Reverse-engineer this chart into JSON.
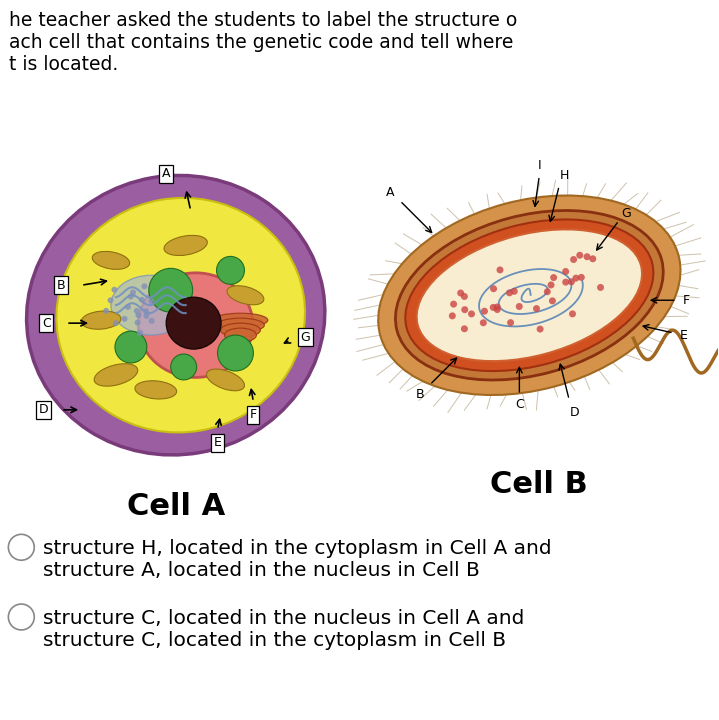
{
  "bg_color": "#ffffff",
  "text_color": "#000000",
  "title_lines": [
    "he teacher asked the students to label the structure o",
    "ach cell that contains the genetic code and tell where",
    "t is located."
  ],
  "cell_a_label": "Cell A",
  "cell_b_label": "Cell B",
  "option1_line1": "structure H, located in the cytoplasm in Cell A and",
  "option1_line2": "structure A, located in the nucleus in Cell B",
  "option2_line1": "structure C, located in the nucleus in Cell A and",
  "option2_line2": "structure C, located in the cytoplasm in Cell B",
  "title_fontsize": 13.5,
  "label_fontsize": 22,
  "option_fontsize": 14.5,
  "purple_outer": "#9B5EA0",
  "purple_dark": "#7A3B7A",
  "yellow_cytoplasm": "#F0E840",
  "yellow_dark": "#C8C010",
  "nucleus_pink": "#E87878",
  "nucleus_edge": "#C05050",
  "nucleolus_dark": "#3A1010",
  "mito_fill": "#C8A030",
  "mito_edge": "#907010",
  "green_fill": "#48A848",
  "green_edge": "#207020",
  "er_blue": "#7090C0",
  "golgi_fill": "#CC6633",
  "bact_outer_fill": "#D4924A",
  "bact_outer_edge": "#A06820",
  "bact_wall_fill": "#C47838",
  "bact_inner_fill": "#F8EDD0",
  "bact_inner_edge": "#C06030",
  "dna_blue": "#5080B8",
  "ribo_red": "#CC4444",
  "flagellum_color": "#A06820",
  "pili_color": "#B8A888",
  "label_box_edge": "#000000",
  "arrow_color": "#000000"
}
